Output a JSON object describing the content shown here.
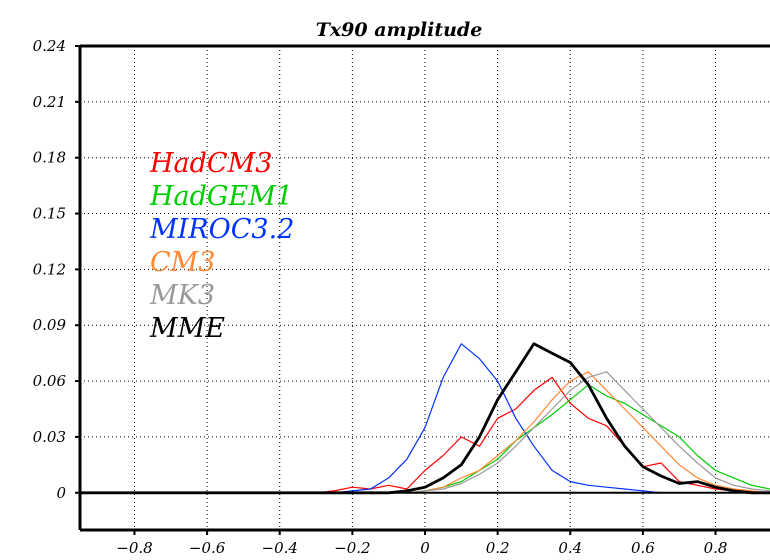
{
  "chart_data": {
    "type": "line",
    "title": "Tx90 amplitude",
    "xlabel": "",
    "ylabel": "",
    "xlim": [
      -0.95,
      0.95
    ],
    "ylim": [
      -0.02,
      0.24
    ],
    "x_ticks": [
      -0.8,
      -0.6,
      -0.4,
      -0.2,
      0,
      0.2,
      0.4,
      0.6,
      0.8
    ],
    "x_tick_labels": [
      "−0.8",
      "−0.6",
      "−0.4",
      "−0.2",
      "0",
      "0.2",
      "0.4",
      "0.6",
      "0.8"
    ],
    "y_ticks": [
      0,
      0.03,
      0.06,
      0.09,
      0.12,
      0.15,
      0.18,
      0.21,
      0.24
    ],
    "y_tick_labels": [
      "0",
      "0.03",
      "0.06",
      "0.09",
      "0.12",
      "0.15",
      "0.18",
      "0.21",
      "0.24"
    ],
    "grid": true,
    "legend_position": "left",
    "x": [
      -0.95,
      -0.9,
      -0.85,
      -0.8,
      -0.75,
      -0.7,
      -0.65,
      -0.6,
      -0.55,
      -0.5,
      -0.45,
      -0.4,
      -0.35,
      -0.3,
      -0.25,
      -0.2,
      -0.15,
      -0.1,
      -0.05,
      0.0,
      0.05,
      0.1,
      0.15,
      0.2,
      0.25,
      0.3,
      0.35,
      0.4,
      0.45,
      0.5,
      0.55,
      0.6,
      0.65,
      0.7,
      0.75,
      0.8,
      0.85,
      0.9,
      0.95
    ],
    "series": [
      {
        "name": "HadCM3",
        "color": "#ff0000",
        "width": 1.2,
        "values": [
          0,
          0,
          0,
          0,
          0,
          0,
          0,
          0,
          0,
          0,
          0,
          0,
          0,
          0,
          0.001,
          0.003,
          0.002,
          0.004,
          0.002,
          0.012,
          0.02,
          0.03,
          0.025,
          0.04,
          0.045,
          0.055,
          0.062,
          0.048,
          0.04,
          0.036,
          0.025,
          0.014,
          0.016,
          0.006,
          0.004,
          0.002,
          0.001,
          0,
          0
        ]
      },
      {
        "name": "HadGEM1",
        "color": "#00cc00",
        "width": 1.2,
        "values": [
          0,
          0,
          0,
          0,
          0,
          0,
          0,
          0,
          0,
          0,
          0,
          0,
          0,
          0,
          0,
          0,
          0,
          0,
          0,
          0.001,
          0.003,
          0.006,
          0.012,
          0.018,
          0.028,
          0.035,
          0.042,
          0.05,
          0.058,
          0.052,
          0.048,
          0.042,
          0.036,
          0.03,
          0.02,
          0.012,
          0.008,
          0.004,
          0.002
        ]
      },
      {
        "name": "MIROC3.2",
        "color": "#0033ff",
        "width": 1.2,
        "values": [
          0,
          0,
          0,
          0,
          0,
          0,
          0,
          0,
          0,
          0,
          0,
          0,
          0,
          0,
          0,
          0.001,
          0.002,
          0.008,
          0.018,
          0.035,
          0.062,
          0.08,
          0.072,
          0.06,
          0.04,
          0.025,
          0.012,
          0.006,
          0.004,
          0.003,
          0.002,
          0.001,
          0,
          0,
          0,
          0,
          0,
          0,
          0
        ]
      },
      {
        "name": "CM3",
        "color": "#ff8833",
        "width": 1.2,
        "values": [
          0,
          0,
          0,
          0,
          0,
          0,
          0,
          0,
          0,
          0,
          0,
          0,
          0,
          0,
          0,
          0,
          0,
          0,
          0,
          0.001,
          0.003,
          0.008,
          0.012,
          0.02,
          0.028,
          0.038,
          0.05,
          0.06,
          0.065,
          0.055,
          0.045,
          0.035,
          0.025,
          0.015,
          0.008,
          0.004,
          0.002,
          0.001,
          0
        ]
      },
      {
        "name": "MK3",
        "color": "#999999",
        "width": 1.2,
        "values": [
          0,
          0,
          0,
          0,
          0,
          0,
          0,
          0,
          0,
          0,
          0,
          0,
          0,
          0,
          0,
          0,
          0,
          0,
          0,
          0.001,
          0.002,
          0.005,
          0.01,
          0.016,
          0.025,
          0.035,
          0.045,
          0.055,
          0.062,
          0.065,
          0.055,
          0.045,
          0.035,
          0.025,
          0.016,
          0.008,
          0.004,
          0.002,
          0.001
        ]
      },
      {
        "name": "MME",
        "color": "#000000",
        "width": 2.8,
        "values": [
          0,
          0,
          0,
          0,
          0,
          0,
          0,
          0,
          0,
          0,
          0,
          0,
          0,
          0,
          0,
          0,
          0,
          0,
          0.001,
          0.003,
          0.008,
          0.015,
          0.03,
          0.05,
          0.065,
          0.08,
          0.075,
          0.07,
          0.058,
          0.04,
          0.025,
          0.014,
          0.009,
          0.005,
          0.006,
          0.003,
          0.001,
          0,
          0
        ]
      }
    ]
  }
}
